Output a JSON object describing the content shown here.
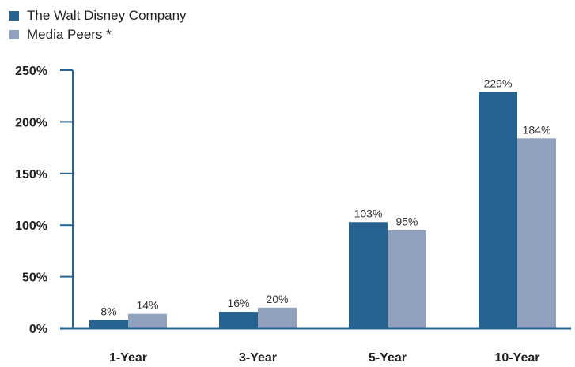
{
  "chart_data": {
    "type": "bar",
    "title": "",
    "xlabel": "",
    "ylabel": "",
    "categories": [
      "1-Year",
      "3-Year",
      "5-Year",
      "10-Year"
    ],
    "series": [
      {
        "name": "The Walt Disney Company",
        "color": "#276391",
        "values": [
          8,
          16,
          103,
          229
        ],
        "labels": [
          "8%",
          "16%",
          "103%",
          "229%"
        ]
      },
      {
        "name": "Media Peers *",
        "color": "#8fa1bc",
        "values": [
          14,
          20,
          95,
          184
        ],
        "labels": [
          "14%",
          "20%",
          "95%",
          "184%"
        ]
      }
    ],
    "y_ticks": [
      0,
      50,
      100,
      150,
      200,
      250
    ],
    "y_tick_labels": [
      "0%",
      "50%",
      "100%",
      "150%",
      "200%",
      "250%"
    ],
    "ylim": [
      0,
      250
    ],
    "grid": false,
    "legend_position": "top-left",
    "axis_color": "#276391"
  }
}
